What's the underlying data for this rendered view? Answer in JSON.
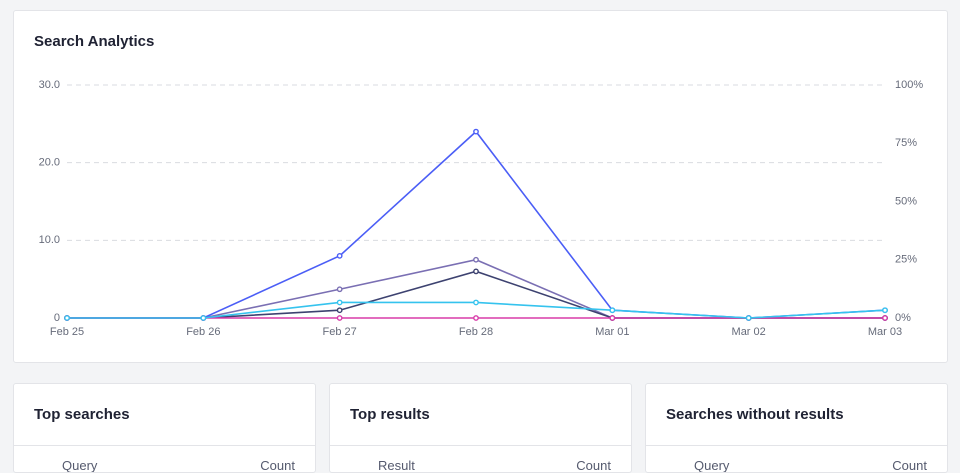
{
  "chart_data": {
    "type": "line",
    "title": "Search Analytics",
    "categories": [
      "Feb 25",
      "Feb 26",
      "Feb 27",
      "Feb 28",
      "Mar 01",
      "Mar 02",
      "Mar 03"
    ],
    "series": [
      {
        "color": "#7a6fb3",
        "values": [
          0,
          0,
          3.7,
          7.5,
          0,
          0,
          0
        ]
      },
      {
        "color": "#3d4270",
        "values": [
          0,
          0,
          1,
          6,
          0,
          0,
          0
        ]
      },
      {
        "color": "#4b5ef6",
        "values": [
          0,
          0,
          8,
          24,
          1,
          0,
          1
        ]
      },
      {
        "color": "#d83ba9",
        "axis": "y2",
        "values": [
          0,
          0,
          0,
          0,
          0,
          0,
          0
        ]
      },
      {
        "color": "#35c3ee",
        "values": [
          0,
          0,
          2,
          2,
          1,
          0,
          1
        ]
      }
    ],
    "ylim": [
      0,
      30
    ],
    "yticks": [
      0,
      {
        "value": 10,
        "label": "10.0"
      },
      {
        "value": 20,
        "label": "20.0"
      },
      {
        "value": 30,
        "label": "30.0"
      }
    ],
    "y2lim": [
      0,
      100
    ],
    "y2ticks": [
      {
        "value": 0,
        "label": "0%"
      },
      {
        "value": 25,
        "label": "25%"
      },
      {
        "value": 50,
        "label": "50%"
      },
      {
        "value": 75,
        "label": "75%"
      },
      {
        "value": 100,
        "label": "100%"
      }
    ],
    "grid": true
  },
  "panels": [
    {
      "title": "Top searches",
      "columns": [
        "Query",
        "Count"
      ]
    },
    {
      "title": "Top results",
      "columns": [
        "Result",
        "Count"
      ]
    },
    {
      "title": "Searches without results",
      "columns": [
        "Query",
        "Count"
      ]
    }
  ]
}
